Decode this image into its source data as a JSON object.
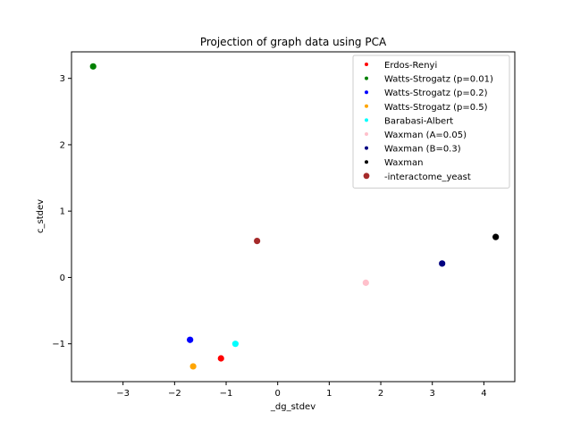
{
  "chart_data": {
    "type": "scatter",
    "title": "Projection of graph data using PCA",
    "xlabel": "_dg_stdev",
    "ylabel": "c_stdev",
    "xlim": [
      -4.0,
      4.6
    ],
    "ylim": [
      -1.57,
      3.4
    ],
    "xticks": [
      -3,
      -2,
      -1,
      0,
      1,
      2,
      3,
      4
    ],
    "yticks": [
      -1,
      0,
      1,
      2,
      3
    ],
    "legend_position": "top-right",
    "grid": false,
    "series": [
      {
        "name": "Erdos-Renyi",
        "color": "#ff0000",
        "points": [
          [
            -1.1,
            -1.22
          ]
        ]
      },
      {
        "name": "Watts-Strogatz (p=0.01)",
        "color": "#008000",
        "points": [
          [
            -3.58,
            3.18
          ]
        ]
      },
      {
        "name": "Watts-Strogatz (p=0.2)",
        "color": "#0000ff",
        "points": [
          [
            -1.7,
            -0.94
          ]
        ]
      },
      {
        "name": "Watts-Strogatz (p=0.5)",
        "color": "#ffa500",
        "points": [
          [
            -1.64,
            -1.34
          ]
        ]
      },
      {
        "name": "Barabasi-Albert",
        "color": "#00ffff",
        "points": [
          [
            -0.82,
            -1.0
          ]
        ]
      },
      {
        "name": "Waxman (A=0.05)",
        "color": "#ffc0cb",
        "points": [
          [
            1.71,
            -0.08
          ]
        ]
      },
      {
        "name": "Waxman (B=0.3)",
        "color": "#000080",
        "points": [
          [
            3.19,
            0.21
          ]
        ]
      },
      {
        "name": "Waxman",
        "color": "#000000",
        "points": [
          [
            4.23,
            0.61
          ]
        ]
      },
      {
        "name": "-interactome_yeast",
        "color": "#a52a2a",
        "points": [
          [
            -0.4,
            0.55
          ]
        ]
      }
    ]
  }
}
